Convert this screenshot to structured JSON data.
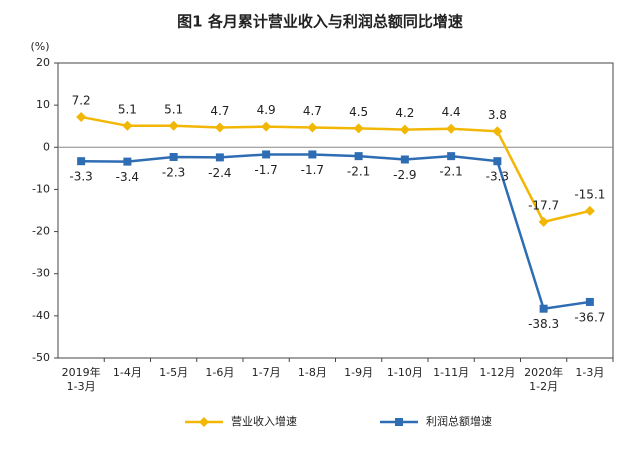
{
  "chart_data": {
    "type": "line",
    "title": "图1 各月累计营业收入与利润总额同比增速",
    "y_label": "(%)",
    "categories": [
      [
        "2019年",
        "1-3月"
      ],
      [
        "1-4月"
      ],
      [
        "1-5月"
      ],
      [
        "1-6月"
      ],
      [
        "1-7月"
      ],
      [
        "1-8月"
      ],
      [
        "1-9月"
      ],
      [
        "1-10月"
      ],
      [
        "1-11月"
      ],
      [
        "1-12月"
      ],
      [
        "2020年",
        "1-2月"
      ],
      [
        "1-3月"
      ]
    ],
    "series": [
      {
        "name": "营业收入增速",
        "color": "#f2b705",
        "marker": "diamond",
        "label_side": "above",
        "values": [
          7.2,
          5.1,
          5.1,
          4.7,
          4.9,
          4.7,
          4.5,
          4.2,
          4.4,
          3.8,
          -17.7,
          -15.1
        ]
      },
      {
        "name": "利润总额增速",
        "color": "#2e6db4",
        "marker": "square",
        "label_side": "below",
        "values": [
          -3.3,
          -3.4,
          -2.3,
          -2.4,
          -1.7,
          -1.7,
          -2.1,
          -2.9,
          -2.1,
          -3.3,
          -38.3,
          -36.7
        ]
      }
    ],
    "ylim": [
      -50,
      20
    ],
    "yticks": [
      -50,
      -40,
      -30,
      -20,
      -10,
      0,
      10,
      20
    ],
    "grid": false,
    "legend": "bottom"
  }
}
